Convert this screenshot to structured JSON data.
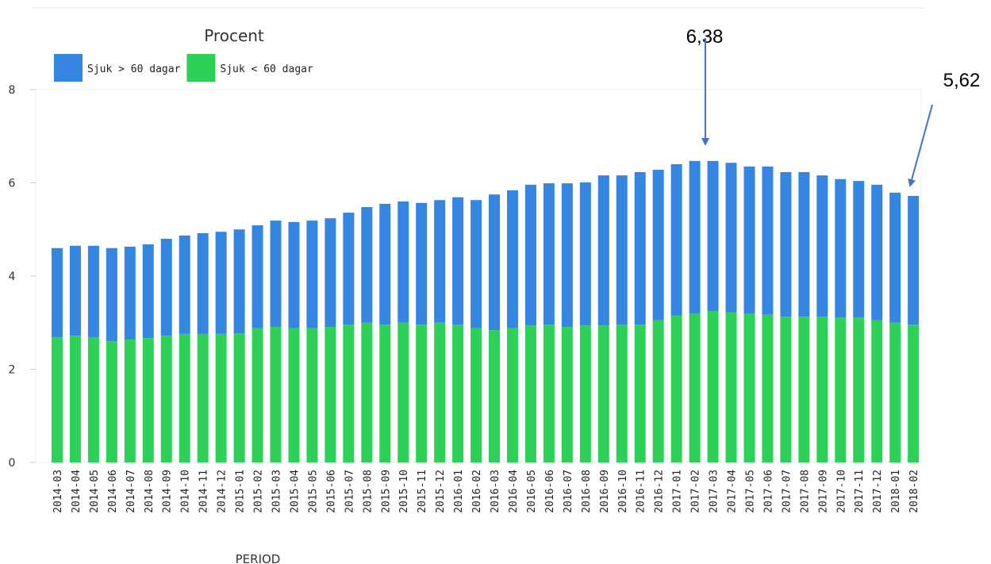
{
  "chart_data": {
    "type": "stacked_bar",
    "title": "Procent",
    "x_label": "PERIOD",
    "categories": [
      "2014-03",
      "2014-04",
      "2014-05",
      "2014-06",
      "2014-07",
      "2014-08",
      "2014-09",
      "2014-10",
      "2014-11",
      "2014-12",
      "2015-01",
      "2015-02",
      "2015-03",
      "2015-04",
      "2015-05",
      "2015-06",
      "2015-07",
      "2015-08",
      "2015-09",
      "2015-10",
      "2015-11",
      "2015-12",
      "2016-01",
      "2016-02",
      "2016-03",
      "2016-04",
      "2016-05",
      "2016-06",
      "2016-07",
      "2016-08",
      "2016-09",
      "2016-10",
      "2016-11",
      "2016-12",
      "2017-01",
      "2017-02",
      "2017-03",
      "2017-04",
      "2017-05",
      "2017-06",
      "2017-07",
      "2017-08",
      "2017-09",
      "2017-10",
      "2017-11",
      "2017-12",
      "2018-01",
      "2018-02"
    ],
    "series": [
      {
        "name": "Sjuk > 60 dagar",
        "color": "#3585e2",
        "stack_order": 1,
        "values": [
          1.91,
          1.93,
          1.96,
          2.0,
          1.99,
          2.01,
          2.08,
          2.11,
          2.16,
          2.19,
          2.23,
          2.21,
          2.28,
          2.28,
          2.31,
          2.33,
          2.4,
          2.48,
          2.59,
          2.6,
          2.61,
          2.63,
          2.73,
          2.75,
          2.91,
          2.96,
          3.02,
          3.03,
          3.08,
          3.07,
          3.22,
          3.2,
          3.27,
          3.23,
          3.25,
          3.27,
          3.22,
          3.21,
          3.15,
          3.18,
          3.1,
          3.1,
          3.03,
          2.97,
          2.93,
          2.91,
          2.79,
          2.76
        ]
      },
      {
        "name": "Sjuk < 60 dagar",
        "color": "#2ed158",
        "stack_order": 0,
        "values": [
          2.69,
          2.72,
          2.69,
          2.6,
          2.64,
          2.67,
          2.72,
          2.76,
          2.76,
          2.76,
          2.77,
          2.88,
          2.91,
          2.88,
          2.88,
          2.91,
          2.96,
          3.0,
          2.96,
          3.0,
          2.96,
          3.0,
          2.96,
          2.88,
          2.84,
          2.88,
          2.94,
          2.96,
          2.91,
          2.94,
          2.94,
          2.96,
          2.96,
          3.05,
          3.15,
          3.2,
          3.25,
          3.22,
          3.2,
          3.17,
          3.13,
          3.13,
          3.13,
          3.11,
          3.11,
          3.05,
          3.0,
          2.96
        ]
      }
    ],
    "ylim": [
      0,
      8
    ],
    "yticks": [
      0,
      2,
      4,
      6,
      8
    ],
    "annotations": [
      "6,38",
      "5,62"
    ]
  }
}
